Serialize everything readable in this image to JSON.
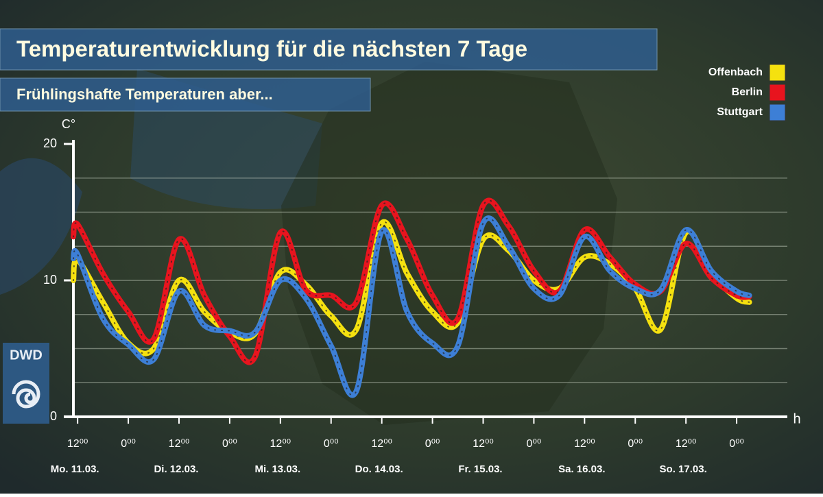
{
  "chart_data": {
    "type": "line",
    "title": "Temperaturentwicklung für die nächsten 7 Tage",
    "subtitle": "Frühlingshafte Temperaturen aber...",
    "ylabel": "C°",
    "xlabel": "h",
    "logo": "DWD",
    "day_labels": [
      "Mo. 11.03.",
      "Di. 12.03.",
      "Mi. 13.03.",
      "Do. 14.03.",
      "Fr. 15.03.",
      "Sa. 16.03.",
      "So. 17.03."
    ],
    "x": [
      11,
      12,
      18,
      24,
      30,
      36,
      42,
      48,
      54,
      60,
      66,
      72,
      78,
      84,
      90,
      96,
      102,
      108,
      114,
      120,
      126,
      132,
      138,
      144,
      150,
      156,
      162,
      168,
      171
    ],
    "series": [
      {
        "name": "Offenbach",
        "color": "#f5e10f",
        "values": [
          10.0,
          11.5,
          8.4,
          5.4,
          5.0,
          10.0,
          7.7,
          6.2,
          6.1,
          10.6,
          9.7,
          7.4,
          6.4,
          14.2,
          10.5,
          7.7,
          6.9,
          13.0,
          12.2,
          10.0,
          9.4,
          11.7,
          11.2,
          9.4,
          6.4,
          13.5,
          10.5,
          8.7,
          8.4
        ]
      },
      {
        "name": "Berlin",
        "color": "#e8141e",
        "values": [
          13.2,
          14.1,
          10.5,
          7.7,
          5.7,
          13.0,
          8.9,
          5.9,
          4.4,
          13.5,
          9.3,
          8.9,
          8.4,
          15.5,
          13.0,
          8.9,
          7.2,
          15.5,
          14.0,
          10.7,
          9.2,
          13.7,
          11.7,
          9.7,
          9.2,
          12.7,
          10.2,
          8.9,
          8.8
        ]
      },
      {
        "name": "Stuttgart",
        "color": "#3d7fd6",
        "values": [
          11.6,
          11.9,
          7.2,
          5.3,
          4.2,
          9.2,
          6.7,
          6.3,
          6.2,
          10.0,
          8.7,
          5.2,
          1.9,
          13.6,
          7.7,
          5.4,
          5.2,
          14.2,
          12.5,
          9.4,
          8.9,
          13.2,
          10.7,
          9.4,
          9.3,
          13.7,
          10.7,
          9.2,
          8.9
        ]
      }
    ],
    "xlim": [
      11,
      180
    ],
    "xticks": [
      {
        "value": 12,
        "label": "12⁰⁰"
      },
      {
        "value": 24,
        "label": "0⁰⁰"
      },
      {
        "value": 36,
        "label": "12⁰⁰"
      },
      {
        "value": 48,
        "label": "0⁰⁰"
      },
      {
        "value": 60,
        "label": "12⁰⁰"
      },
      {
        "value": 72,
        "label": "0⁰⁰"
      },
      {
        "value": 84,
        "label": "12⁰⁰"
      },
      {
        "value": 96,
        "label": "0⁰⁰"
      },
      {
        "value": 108,
        "label": "12⁰⁰"
      },
      {
        "value": 120,
        "label": "0⁰⁰"
      },
      {
        "value": 132,
        "label": "12⁰⁰"
      },
      {
        "value": 144,
        "label": "0⁰⁰"
      },
      {
        "value": 156,
        "label": "12⁰⁰"
      },
      {
        "value": 168,
        "label": "0⁰⁰"
      }
    ],
    "ylim": [
      0,
      20
    ],
    "yticks": [
      0,
      10,
      20
    ],
    "yminor": [
      2.5,
      5,
      7.5,
      12.5,
      15,
      17.5
    ],
    "grid": true,
    "legend": "top-right"
  }
}
